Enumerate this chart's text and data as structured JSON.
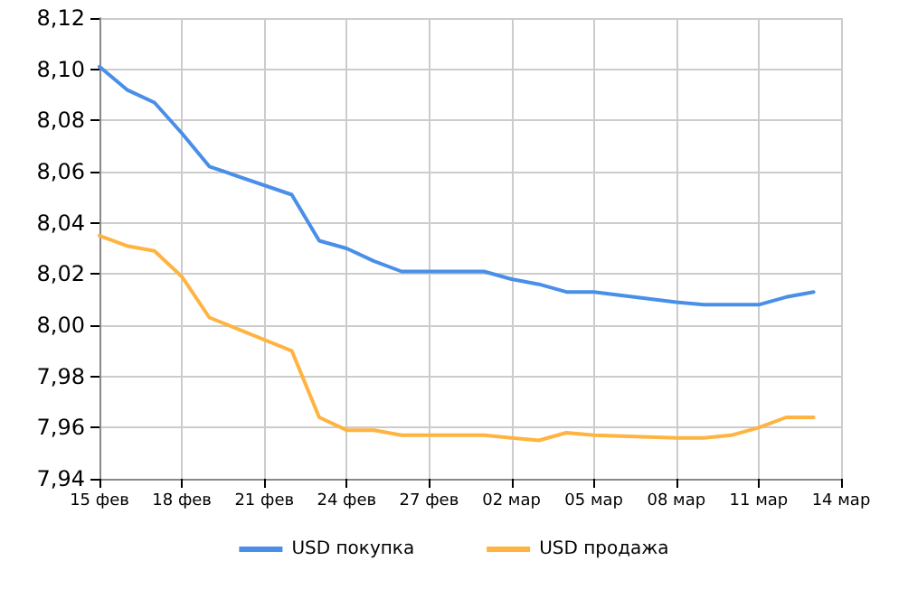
{
  "chart_data": {
    "type": "line",
    "x": [
      "--02-15",
      "--02-16",
      "--02-17",
      "--02-18",
      "--02-19",
      "--02-22",
      "--02-23",
      "--02-24",
      "--02-25",
      "--02-26",
      "--03-01",
      "--03-02",
      "--03-03",
      "--03-04",
      "--03-05",
      "--03-08",
      "--03-09",
      "--03-10",
      "--03-11",
      "--03-12",
      "--03-13"
    ],
    "series": [
      {
        "name": "USD покупка",
        "color": "#4a8fe7",
        "values": [
          8.101,
          8.092,
          8.087,
          8.075,
          8.062,
          8.051,
          8.033,
          8.03,
          8.025,
          8.021,
          8.021,
          8.018,
          8.016,
          8.013,
          8.013,
          8.009,
          8.008,
          8.008,
          8.008,
          8.011,
          8.013
        ]
      },
      {
        "name": "USD продажа",
        "color": "#ffb340",
        "values": [
          8.035,
          8.031,
          8.029,
          8.019,
          8.003,
          7.99,
          7.964,
          7.959,
          7.959,
          7.957,
          7.957,
          7.956,
          7.955,
          7.958,
          7.957,
          7.956,
          7.956,
          7.957,
          7.96,
          7.964,
          7.964
        ]
      }
    ],
    "xlim": [
      "--02-15",
      "--03-14"
    ],
    "xticks": [
      {
        "value": "--02-15",
        "label": "15 фев"
      },
      {
        "value": "--02-18",
        "label": "18 фев"
      },
      {
        "value": "--02-21",
        "label": "21 фев"
      },
      {
        "value": "--02-24",
        "label": "24 фев"
      },
      {
        "value": "--02-27",
        "label": "27 фев"
      },
      {
        "value": "--03-02",
        "label": "02 мар"
      },
      {
        "value": "--03-05",
        "label": "05 мар"
      },
      {
        "value": "--03-08",
        "label": "08 мар"
      },
      {
        "value": "--03-11",
        "label": "11 мар"
      },
      {
        "value": "--03-14",
        "label": "14 мар"
      }
    ],
    "ylim": [
      7.94,
      8.12
    ],
    "yticks": [
      {
        "value": 7.94,
        "label": "7,94"
      },
      {
        "value": 7.96,
        "label": "7,96"
      },
      {
        "value": 7.98,
        "label": "7,98"
      },
      {
        "value": 8.0,
        "label": "8,00"
      },
      {
        "value": 8.02,
        "label": "8,02"
      },
      {
        "value": 8.04,
        "label": "8,04"
      },
      {
        "value": 8.06,
        "label": "8,06"
      },
      {
        "value": 8.08,
        "label": "8,08"
      },
      {
        "value": 8.1,
        "label": "8,10"
      },
      {
        "value": 8.12,
        "label": "8,12"
      }
    ],
    "grid": true,
    "legend": "bottom",
    "marker": "none",
    "line_style": "solid"
  }
}
